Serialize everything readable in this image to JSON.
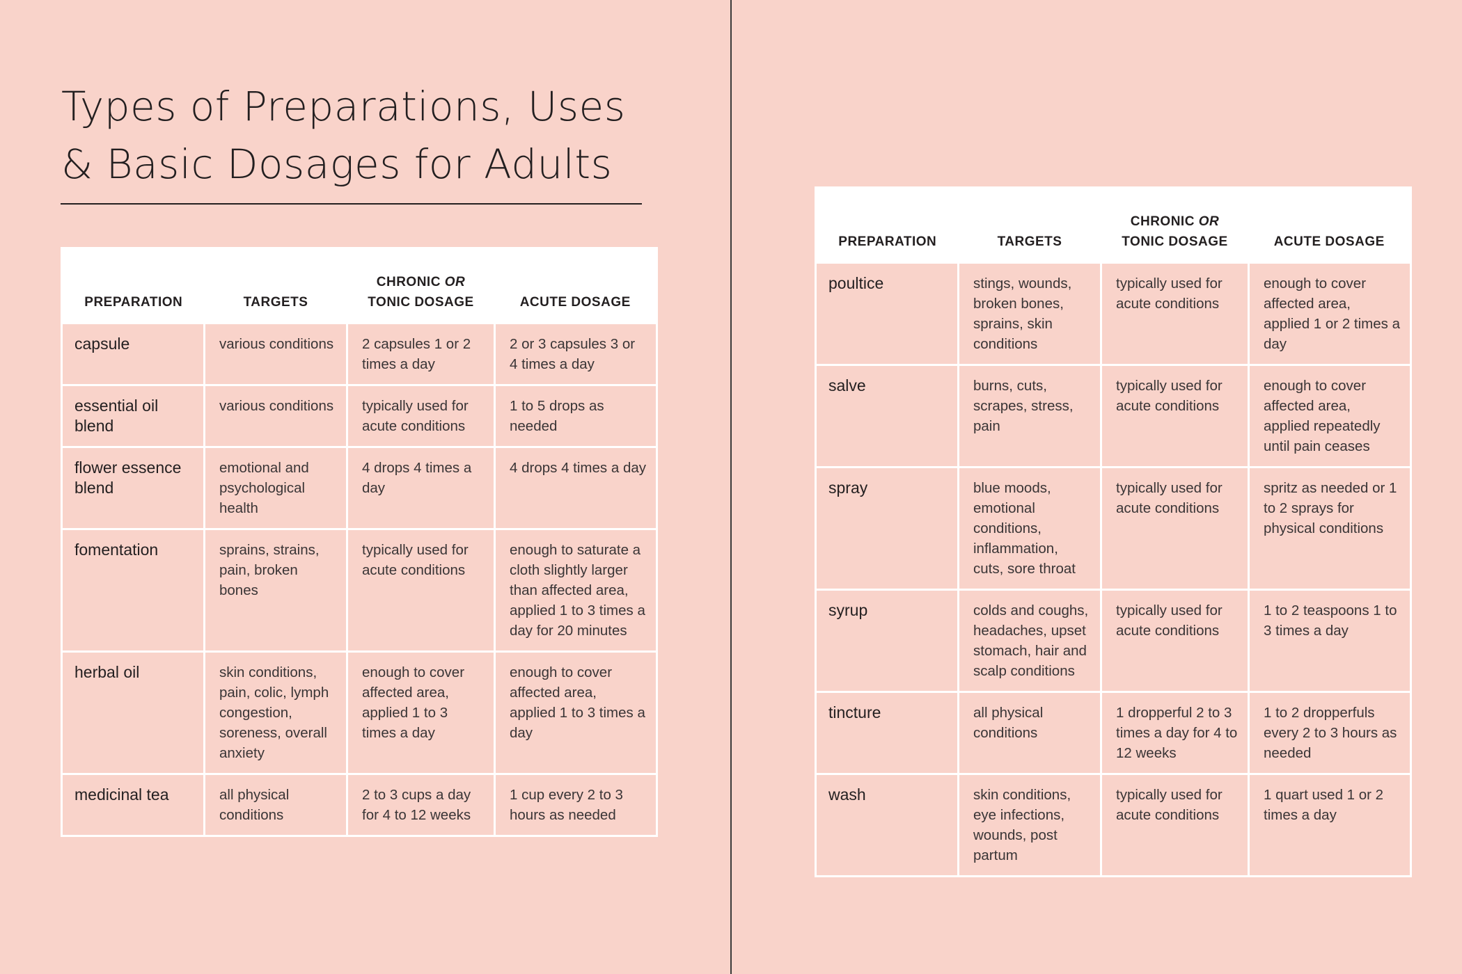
{
  "title": {
    "line1": "Types of Preparations, Uses",
    "line2": "& Basic Dosages for Adults"
  },
  "headers": {
    "preparation": "PREPARATION",
    "targets": "TARGETS",
    "chronic_line1": "CHRONIC",
    "chronic_or": "OR",
    "chronic_line2": "TONIC DOSAGE",
    "acute": "ACUTE DOSAGE"
  },
  "left_rows": [
    {
      "preparation": "capsule",
      "targets": "various conditions",
      "chronic": "2 capsules 1 or 2 times a day",
      "acute": "2 or 3 capsules 3 or 4 times a day"
    },
    {
      "preparation": "essential oil blend",
      "targets": "various conditions",
      "chronic": "typically used for acute conditions",
      "acute": "1 to 5 drops as needed"
    },
    {
      "preparation": "flower essence blend",
      "targets": "emotional and psychological health",
      "chronic": "4 drops 4 times a day",
      "acute": "4 drops 4 times a day"
    },
    {
      "preparation": "fomentation",
      "targets": "sprains, strains, pain, broken bones",
      "chronic": "typically used for acute conditions",
      "acute": "enough to saturate a cloth slightly larger than affected area, applied 1 to 3 times a day for 20 minutes"
    },
    {
      "preparation": "herbal oil",
      "targets": "skin conditions, pain, colic, lymph congestion, soreness, overall anxiety",
      "chronic": "enough to cover affected area, applied 1 to 3 times a day",
      "acute": "enough to cover affected area, applied 1 to 3 times a day"
    },
    {
      "preparation": "medicinal tea",
      "targets": "all physical conditions",
      "chronic": "2 to 3 cups a day for 4 to 12 weeks",
      "acute": "1 cup every 2 to 3 hours as needed"
    }
  ],
  "right_rows": [
    {
      "preparation": "poultice",
      "targets": "stings, wounds, broken bones, sprains, skin conditions",
      "chronic": "typically used for acute conditions",
      "acute": "enough to cover affected area, applied 1 or 2 times a day"
    },
    {
      "preparation": "salve",
      "targets": "burns, cuts, scrapes, stress, pain",
      "chronic": "typically used for acute conditions",
      "acute": "enough to cover affected area, applied repeatedly until pain ceases"
    },
    {
      "preparation": "spray",
      "targets": "blue moods, emotional conditions, inflammation, cuts, sore throat",
      "chronic": "typically used for acute conditions",
      "acute": "spritz as needed or 1 to 2 sprays for physical conditions"
    },
    {
      "preparation": "syrup",
      "targets": "colds and coughs, headaches, upset stomach, hair and scalp conditions",
      "chronic": "typically used for acute conditions",
      "acute": "1 to 2 teaspoons 1 to 3 times a day"
    },
    {
      "preparation": "tincture",
      "targets": "all physical conditions",
      "chronic": "1 dropperful 2 to 3 times a day for 4 to 12 weeks",
      "acute": "1 to 2 dropperfuls every 2 to 3 hours as needed"
    },
    {
      "preparation": "wash",
      "targets": "skin conditions, eye infections, wounds, post partum",
      "chronic": "typically used for acute conditions",
      "acute": "1 quart used 1 or 2 times a day"
    }
  ],
  "colors": {
    "background": "#f9d3ca",
    "header": "#ffffff",
    "text": "#231f20"
  }
}
